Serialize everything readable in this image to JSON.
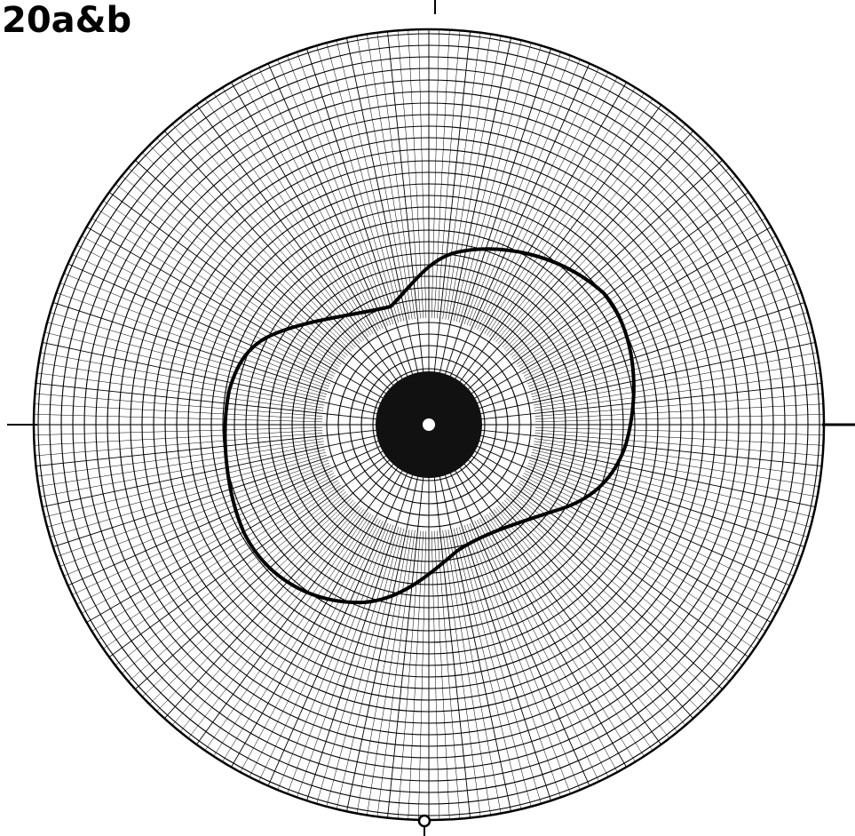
{
  "header": {
    "title": "20a&b"
  }
}
